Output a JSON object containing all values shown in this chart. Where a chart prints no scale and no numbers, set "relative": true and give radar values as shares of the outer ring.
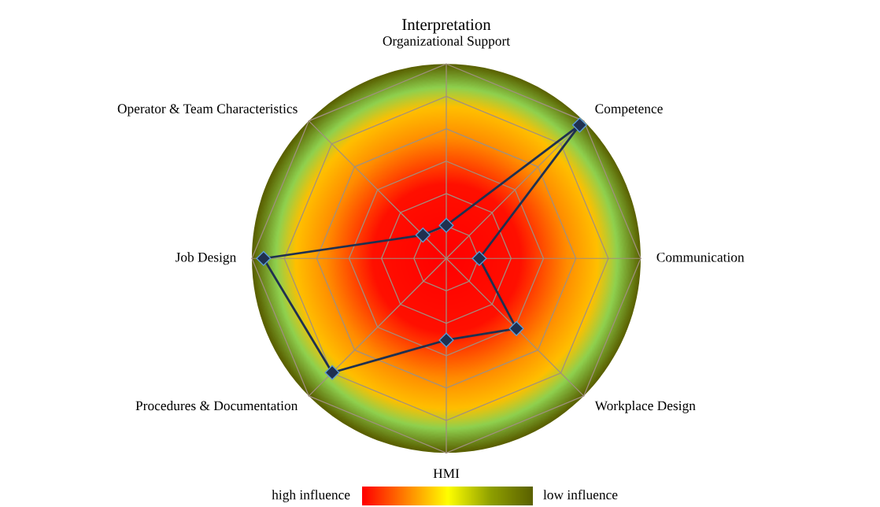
{
  "chart_data": {
    "type": "radar",
    "title": "Interpretation",
    "categories": [
      "Organizational Support",
      "Competence",
      "Communication",
      "Workplace Design",
      "HMI",
      "Procedures & Documentation",
      "Job Design",
      "Operator & Team Characteristics"
    ],
    "series": [
      {
        "color": "#1f3050",
        "values": [
          0.17,
          0.97,
          0.17,
          0.51,
          0.42,
          0.83,
          0.94,
          0.17
        ]
      }
    ],
    "relative": true,
    "grid": true,
    "marker": "diamond",
    "line_style": "solid",
    "annotations": [
      "high influence",
      "low influence"
    ]
  }
}
